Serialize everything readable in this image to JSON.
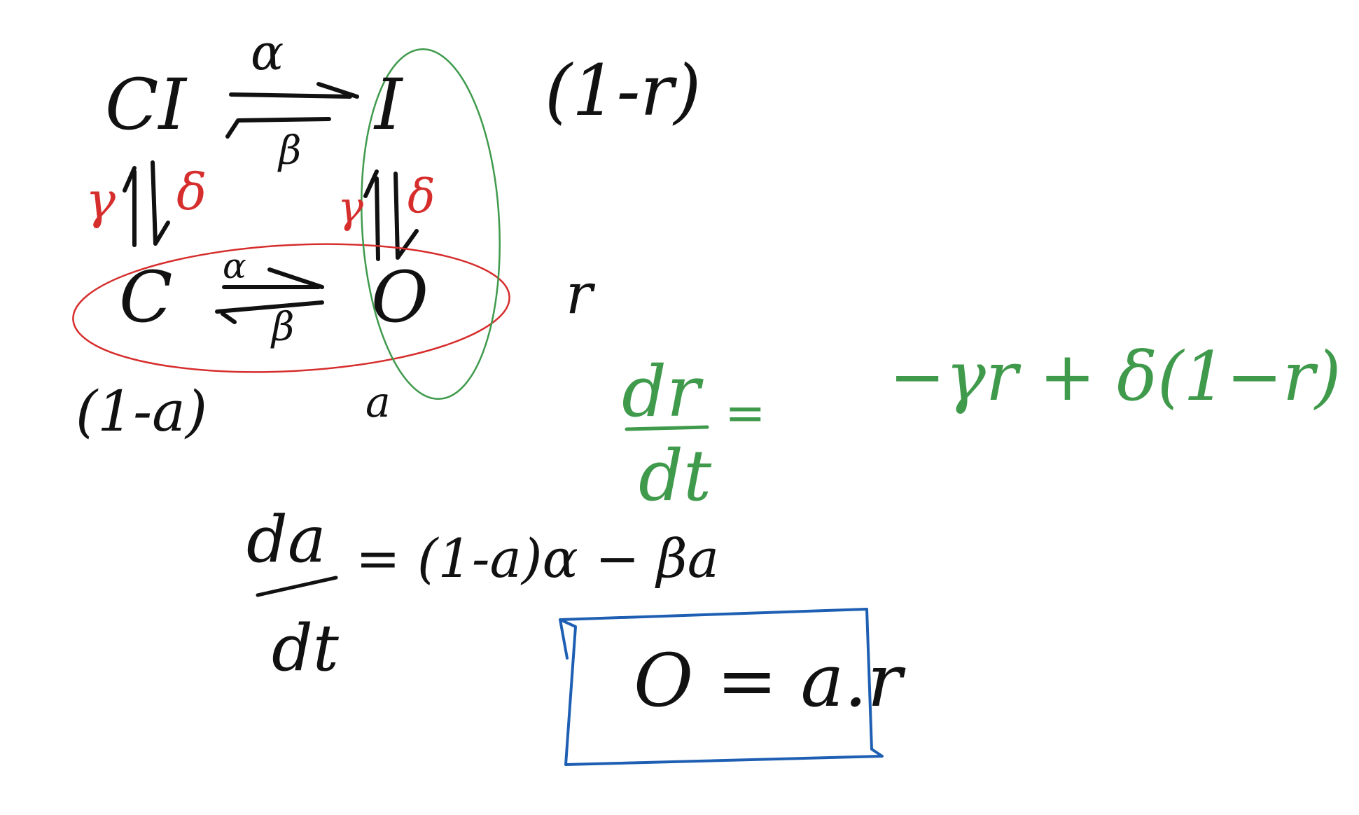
{
  "diagram": {
    "states": {
      "top_left": "CI",
      "top_right": "I",
      "bottom_left": "C",
      "bottom_right": "O"
    },
    "rates": {
      "top_forward": "α",
      "top_backward": "β",
      "bottom_forward": "α",
      "bottom_backward": "β",
      "left_up": "γ",
      "left_down": "δ",
      "right_up": "γ",
      "right_down": "δ"
    },
    "fractions": {
      "top_row": "(1-r)",
      "bottom_row": "r",
      "left_column": "(1-a)",
      "right_column": "a"
    }
  },
  "equations": {
    "da_numerator": "da",
    "da_denominator": "dt",
    "da_rhs": "= (1-a)α − βa",
    "dr_numerator": "dr",
    "dr_denominator": "dt",
    "dr_equals": "=",
    "dr_rhs": "−γr + δ(1−r)",
    "boxed": "O = a.r"
  },
  "colors": {
    "black_ink": "#111111",
    "red_ink": "#d62d2d",
    "green_ink": "#3f9a4c",
    "blue_ink": "#1e5fb3"
  }
}
